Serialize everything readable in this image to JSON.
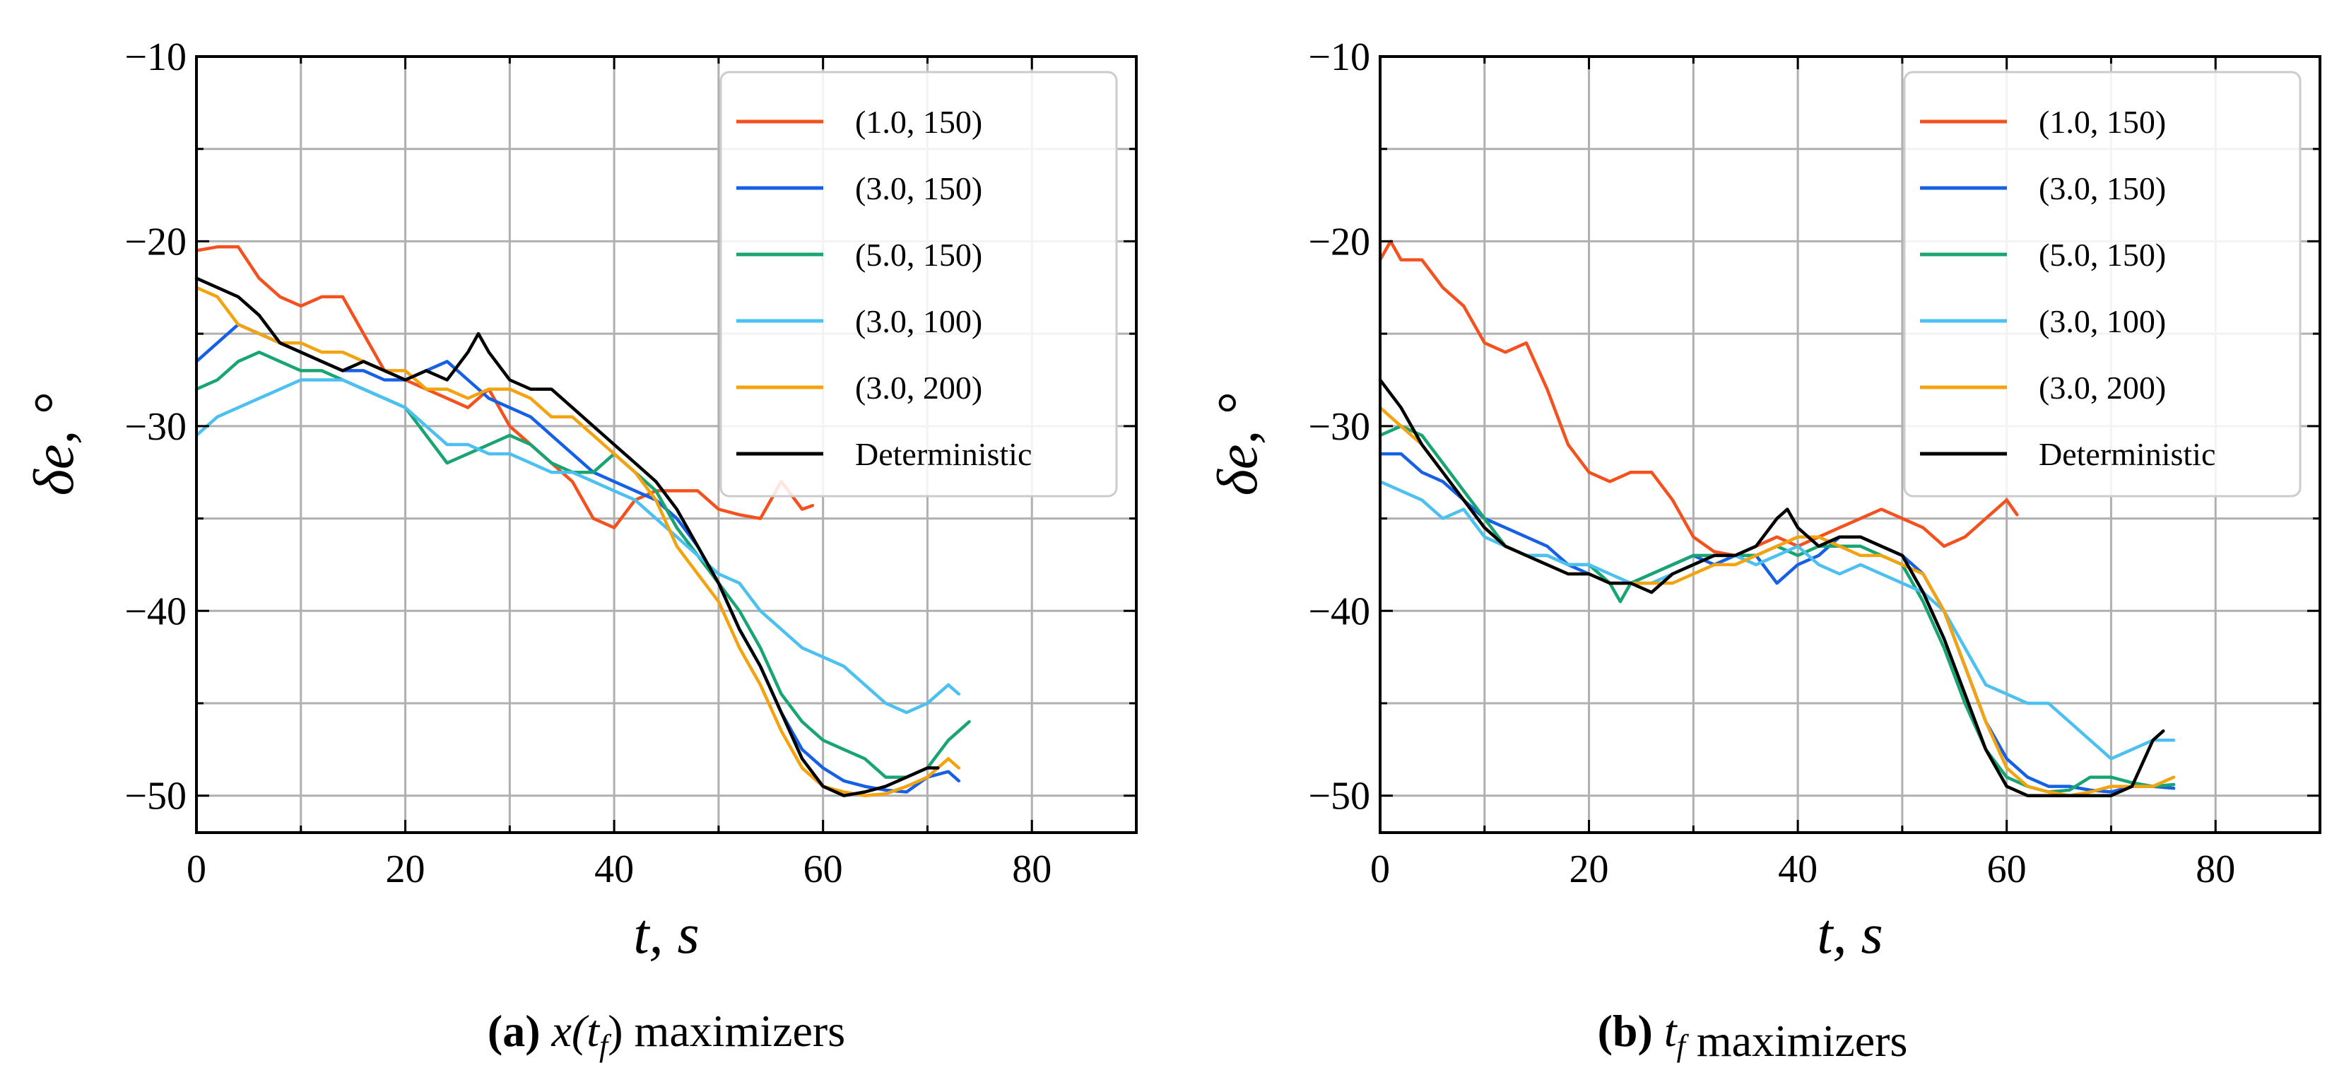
{
  "chart_data": [
    {
      "type": "line",
      "caption": {
        "letter": "(a)",
        "math": "x(t",
        "sub": "f",
        "close": ")",
        "rest": " maximizers"
      },
      "xlabel": "t, s",
      "ylabel": "δe, °",
      "xlim": [
        0,
        90
      ],
      "ylim": [
        -52,
        -10
      ],
      "xticks": [
        0,
        20,
        40,
        60,
        80
      ],
      "yticks": [
        -10,
        -20,
        -30,
        -40,
        -50
      ],
      "grid": true,
      "legend_position": "top-right",
      "series": [
        {
          "name": "(1.0, 150)",
          "color": "#f4511e",
          "x": [
            0,
            2,
            4,
            6,
            8,
            10,
            12,
            14,
            16,
            18,
            20,
            22,
            24,
            26,
            28,
            30,
            32,
            34,
            36,
            38,
            40,
            42,
            44,
            46,
            48,
            50,
            52,
            54,
            56,
            58,
            59
          ],
          "y": [
            -20.5,
            -20.3,
            -20.3,
            -22,
            -23,
            -23.5,
            -23,
            -23,
            -25,
            -27,
            -27.5,
            -28,
            -28.5,
            -29,
            -28,
            -30,
            -31,
            -32,
            -33,
            -35,
            -35.5,
            -34,
            -33.5,
            -33.5,
            -33.5,
            -34.5,
            -34.8,
            -35,
            -33,
            -34.5,
            -34.3
          ]
        },
        {
          "name": "(3.0, 150)",
          "color": "#1660e6",
          "x": [
            0,
            2,
            4,
            6,
            8,
            10,
            12,
            14,
            16,
            18,
            20,
            22,
            24,
            26,
            28,
            30,
            32,
            34,
            36,
            38,
            40,
            42,
            44,
            46,
            48,
            50,
            52,
            54,
            56,
            58,
            60,
            62,
            64,
            66,
            68,
            70,
            72,
            73
          ],
          "y": [
            -26.5,
            -25.5,
            -24.5,
            -25,
            -25.5,
            -26,
            -26.5,
            -27,
            -27,
            -27.5,
            -27.5,
            -27,
            -26.5,
            -27.5,
            -28.5,
            -29,
            -29.5,
            -30.5,
            -31.5,
            -32.5,
            -33,
            -33.5,
            -34,
            -35,
            -36.5,
            -38.5,
            -41,
            -43,
            -45.5,
            -47.5,
            -48.5,
            -49.2,
            -49.5,
            -49.7,
            -49.8,
            -49,
            -48.7,
            -49.2
          ]
        },
        {
          "name": "(5.0, 150)",
          "color": "#18a572",
          "x": [
            0,
            2,
            4,
            6,
            8,
            10,
            12,
            14,
            16,
            18,
            20,
            22,
            24,
            26,
            28,
            30,
            32,
            34,
            36,
            38,
            40,
            42,
            44,
            46,
            48,
            50,
            52,
            54,
            56,
            58,
            60,
            62,
            64,
            66,
            68,
            70,
            72,
            74
          ],
          "y": [
            -28,
            -27.5,
            -26.5,
            -26,
            -26.5,
            -27,
            -27,
            -27.5,
            -28,
            -28.5,
            -29,
            -30.5,
            -32,
            -31.5,
            -31,
            -30.5,
            -31,
            -32,
            -32.5,
            -32.5,
            -31.5,
            -32.5,
            -33.5,
            -35.5,
            -37,
            -38.5,
            -40,
            -42,
            -44.5,
            -46,
            -47,
            -47.5,
            -48,
            -49,
            -49,
            -48.5,
            -47,
            -46
          ]
        },
        {
          "name": "(3.0, 100)",
          "color": "#4cc0f0",
          "x": [
            0,
            2,
            4,
            6,
            8,
            10,
            12,
            14,
            16,
            18,
            20,
            22,
            24,
            26,
            28,
            30,
            32,
            34,
            36,
            38,
            40,
            42,
            44,
            46,
            48,
            50,
            52,
            54,
            56,
            58,
            60,
            62,
            64,
            66,
            68,
            70,
            72,
            73
          ],
          "y": [
            -30.5,
            -29.5,
            -29,
            -28.5,
            -28,
            -27.5,
            -27.5,
            -27.5,
            -28,
            -28.5,
            -29,
            -30,
            -31,
            -31,
            -31.5,
            -31.5,
            -32,
            -32.5,
            -32.5,
            -33,
            -33.5,
            -34,
            -35,
            -36,
            -37,
            -38,
            -38.5,
            -40,
            -41,
            -42,
            -42.5,
            -43,
            -44,
            -45,
            -45.5,
            -45,
            -44,
            -44.5
          ]
        },
        {
          "name": "(3.0, 200)",
          "color": "#f3a30f",
          "x": [
            0,
            2,
            4,
            6,
            8,
            10,
            12,
            14,
            16,
            18,
            20,
            22,
            24,
            26,
            28,
            30,
            32,
            34,
            36,
            38,
            40,
            42,
            44,
            46,
            48,
            50,
            52,
            54,
            56,
            58,
            60,
            62,
            64,
            66,
            68,
            70,
            72,
            73
          ],
          "y": [
            -22.5,
            -23,
            -24.5,
            -25,
            -25.5,
            -25.5,
            -26,
            -26,
            -26.5,
            -27,
            -27,
            -28,
            -28,
            -28.5,
            -28,
            -28,
            -28.5,
            -29.5,
            -29.5,
            -30.5,
            -31.5,
            -32.5,
            -34,
            -36.5,
            -38,
            -39.5,
            -42,
            -44,
            -46.5,
            -48.5,
            -49.5,
            -49.8,
            -50,
            -49.9,
            -49.5,
            -49,
            -48,
            -48.5
          ]
        },
        {
          "name": "Deterministic",
          "color": "#000000",
          "x": [
            0,
            2,
            4,
            6,
            8,
            10,
            12,
            14,
            16,
            18,
            20,
            22,
            24,
            26,
            27,
            28,
            30,
            32,
            34,
            36,
            38,
            40,
            42,
            44,
            46,
            48,
            50,
            52,
            54,
            56,
            58,
            60,
            62,
            64,
            66,
            68,
            70,
            71
          ],
          "y": [
            -22,
            -22.5,
            -23,
            -24,
            -25.5,
            -26,
            -26.5,
            -27,
            -26.5,
            -27,
            -27.5,
            -27,
            -27.5,
            -26,
            -25,
            -26,
            -27.5,
            -28,
            -28,
            -29,
            -30,
            -31,
            -32,
            -33,
            -34.5,
            -36.5,
            -38.5,
            -41,
            -43,
            -45.5,
            -48,
            -49.5,
            -50,
            -49.8,
            -49.5,
            -49,
            -48.5,
            -48.5
          ]
        }
      ]
    },
    {
      "type": "line",
      "caption": {
        "letter": "(b)",
        "math": "t",
        "sub": "f",
        "close": "",
        "rest": " maximizers"
      },
      "xlabel": "t, s",
      "ylabel": "δe, °",
      "xlim": [
        0,
        90
      ],
      "ylim": [
        -52,
        -10
      ],
      "xticks": [
        0,
        20,
        40,
        60,
        80
      ],
      "yticks": [
        -10,
        -20,
        -30,
        -40,
        -50
      ],
      "grid": true,
      "legend_position": "top-right",
      "series": [
        {
          "name": "(1.0, 150)",
          "color": "#f4511e",
          "x": [
            0,
            1,
            2,
            4,
            6,
            8,
            10,
            12,
            14,
            16,
            18,
            20,
            22,
            24,
            26,
            28,
            30,
            32,
            34,
            36,
            38,
            40,
            42,
            44,
            46,
            48,
            50,
            52,
            54,
            56,
            58,
            60,
            61
          ],
          "y": [
            -21,
            -20,
            -21,
            -21,
            -22.5,
            -23.5,
            -25.5,
            -26,
            -25.5,
            -28,
            -31,
            -32.5,
            -33,
            -32.5,
            -32.5,
            -34,
            -36,
            -36.8,
            -37,
            -36.5,
            -36,
            -36.5,
            -36,
            -35.5,
            -35,
            -34.5,
            -35,
            -35.5,
            -36.5,
            -36,
            -35,
            -34,
            -34.8
          ]
        },
        {
          "name": "(3.0, 150)",
          "color": "#1660e6",
          "x": [
            0,
            2,
            4,
            6,
            8,
            10,
            12,
            14,
            16,
            18,
            20,
            22,
            24,
            26,
            28,
            30,
            32,
            34,
            36,
            38,
            40,
            42,
            44,
            46,
            48,
            50,
            52,
            54,
            56,
            58,
            60,
            62,
            64,
            66,
            68,
            70,
            72,
            74,
            76
          ],
          "y": [
            -31.5,
            -31.5,
            -32.5,
            -33,
            -34,
            -35,
            -35.5,
            -36,
            -36.5,
            -37.5,
            -38,
            -38.5,
            -38.5,
            -38,
            -37.5,
            -37,
            -37.5,
            -37,
            -37,
            -38.5,
            -37.5,
            -37,
            -36,
            -36,
            -36.5,
            -37,
            -38,
            -40,
            -43,
            -46,
            -48,
            -49,
            -49.5,
            -49.5,
            -49.7,
            -49.8,
            -49.5,
            -49.5,
            -49.6
          ]
        },
        {
          "name": "(5.0, 150)",
          "color": "#18a572",
          "x": [
            0,
            2,
            4,
            6,
            8,
            10,
            12,
            14,
            16,
            18,
            20,
            22,
            23,
            24,
            26,
            28,
            30,
            32,
            34,
            36,
            38,
            40,
            42,
            44,
            46,
            48,
            50,
            52,
            54,
            56,
            58,
            60,
            62,
            64,
            66,
            68,
            70,
            72,
            74,
            76
          ],
          "y": [
            -30.5,
            -30,
            -30.5,
            -32,
            -33.5,
            -35,
            -36.5,
            -37,
            -37,
            -37.5,
            -37.5,
            -38.5,
            -39.5,
            -38.5,
            -38,
            -37.5,
            -37,
            -37,
            -37,
            -37,
            -36.5,
            -37,
            -36.5,
            -36.5,
            -36.5,
            -37,
            -37.5,
            -39.5,
            -42,
            -45,
            -47.5,
            -49,
            -49.5,
            -49.8,
            -49.7,
            -49,
            -49,
            -49.3,
            -49.5,
            -49.4
          ]
        },
        {
          "name": "(3.0, 100)",
          "color": "#4cc0f0",
          "x": [
            0,
            2,
            4,
            6,
            8,
            10,
            12,
            14,
            16,
            18,
            20,
            22,
            24,
            26,
            28,
            30,
            32,
            34,
            36,
            38,
            40,
            42,
            44,
            46,
            48,
            50,
            52,
            54,
            56,
            58,
            60,
            62,
            64,
            66,
            68,
            70,
            72,
            74,
            76
          ],
          "y": [
            -33,
            -33.5,
            -34,
            -35,
            -34.5,
            -36,
            -36.5,
            -37,
            -37,
            -37.5,
            -37.5,
            -38,
            -38.5,
            -38.5,
            -38,
            -37.5,
            -37,
            -37,
            -37.5,
            -37,
            -36.5,
            -37.5,
            -38,
            -37.5,
            -38,
            -38.5,
            -39,
            -40,
            -42,
            -44,
            -44.5,
            -45,
            -45,
            -46,
            -47,
            -48,
            -47.5,
            -47,
            -47
          ]
        },
        {
          "name": "(3.0, 200)",
          "color": "#f3a30f",
          "x": [
            0,
            2,
            4,
            6,
            8,
            10,
            12,
            14,
            16,
            18,
            20,
            22,
            24,
            26,
            28,
            30,
            32,
            34,
            36,
            38,
            40,
            42,
            44,
            46,
            48,
            50,
            52,
            54,
            56,
            58,
            60,
            62,
            64,
            66,
            68,
            70,
            72,
            74,
            76
          ],
          "y": [
            -29,
            -30,
            -31,
            -32.5,
            -34,
            -35.5,
            -36.5,
            -37,
            -37.5,
            -38,
            -38,
            -38.5,
            -38.5,
            -38.5,
            -38.5,
            -38,
            -37.5,
            -37.5,
            -37,
            -36.5,
            -36,
            -36,
            -36.5,
            -37,
            -37,
            -37.5,
            -38,
            -40,
            -43,
            -46,
            -48.5,
            -49.5,
            -49.8,
            -50,
            -49.8,
            -49.5,
            -49.5,
            -49.5,
            -49
          ]
        },
        {
          "name": "Deterministic",
          "color": "#000000",
          "x": [
            0,
            2,
            4,
            6,
            8,
            10,
            12,
            14,
            16,
            18,
            20,
            22,
            24,
            26,
            28,
            30,
            32,
            34,
            36,
            38,
            39,
            40,
            42,
            44,
            46,
            48,
            50,
            52,
            54,
            56,
            58,
            60,
            62,
            64,
            66,
            68,
            70,
            72,
            74,
            75
          ],
          "y": [
            -27.5,
            -29,
            -31,
            -32.5,
            -34,
            -35.5,
            -36.5,
            -37,
            -37.5,
            -38,
            -38,
            -38.5,
            -38.5,
            -39,
            -38,
            -37.5,
            -37,
            -37,
            -36.5,
            -35,
            -34.5,
            -35.5,
            -36.5,
            -36,
            -36,
            -36.5,
            -37,
            -39,
            -41.5,
            -44.5,
            -47.5,
            -49.5,
            -50,
            -50,
            -50,
            -50,
            -50,
            -49.5,
            -47,
            -46.5
          ]
        }
      ]
    }
  ]
}
